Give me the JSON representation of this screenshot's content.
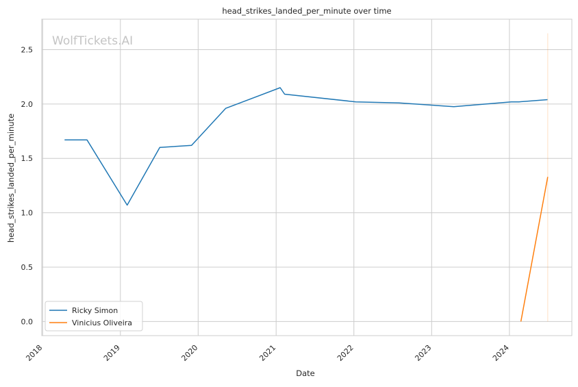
{
  "chart_data": {
    "type": "line",
    "title": "head_strikes_landed_per_minute over time",
    "xlabel": "Date",
    "ylabel": "head_strikes_landed_per_minute",
    "watermark": "WolfTickets.AI",
    "xlim": [
      "2017-12-28",
      "2024-10-20"
    ],
    "ylim": [
      -0.13,
      2.78
    ],
    "x_ticks": [
      "2018",
      "2019",
      "2020",
      "2021",
      "2022",
      "2023",
      "2024"
    ],
    "y_ticks": [
      "0.0",
      "0.5",
      "1.0",
      "1.5",
      "2.0",
      "2.5"
    ],
    "grid": true,
    "legend_position": "lower-left",
    "series": [
      {
        "name": "Ricky Simon",
        "color": "#1f77b4",
        "points": [
          [
            "2018-04-14",
            1.67
          ],
          [
            "2018-07-28",
            1.67
          ],
          [
            "2019-02-02",
            1.07
          ],
          [
            "2019-07-05",
            1.6
          ],
          [
            "2019-12-01",
            1.62
          ],
          [
            "2020-05-09",
            1.96
          ],
          [
            "2021-01-20",
            2.15
          ],
          [
            "2021-02-10",
            2.09
          ],
          [
            "2022-01-10",
            2.02
          ],
          [
            "2022-08-01",
            2.01
          ],
          [
            "2023-04-15",
            1.975
          ],
          [
            "2024-01-10",
            2.02
          ],
          [
            "2024-02-15",
            2.02
          ],
          [
            "2024-06-28",
            2.04
          ]
        ]
      },
      {
        "name": "Vinicius Oliveira",
        "color": "#ff7f0e",
        "points": [
          [
            "2024-02-24",
            0.0
          ],
          [
            "2024-06-29",
            1.33
          ]
        ]
      }
    ],
    "reference_line": {
      "x": "2024-06-29",
      "y_range": [
        0.0,
        2.65
      ],
      "color": "#ff7f0e"
    }
  }
}
